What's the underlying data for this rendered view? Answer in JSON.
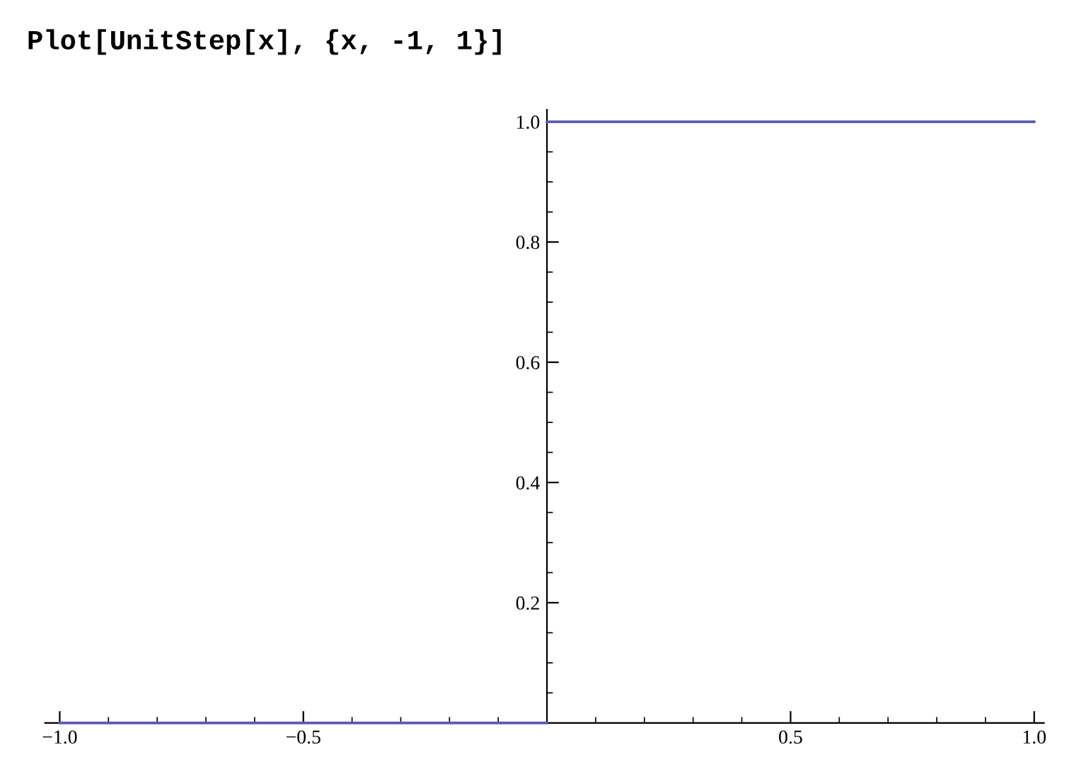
{
  "chart_data": {
    "type": "line",
    "title": "Plot[UnitStep[x], {x, -1, 1}]",
    "series": [
      {
        "color": "#5b5bb0",
        "x": [
          -1,
          0
        ],
        "values": [
          0,
          0
        ]
      },
      {
        "color": "#5b5bb0",
        "x": [
          0,
          1
        ],
        "values": [
          1,
          1
        ]
      }
    ],
    "xlim": [
      -1.03,
      1.02
    ],
    "ylim": [
      0,
      1.02
    ],
    "xticks": [
      {
        "value": -1,
        "label": "−1.0"
      },
      {
        "value": -0.5,
        "label": "−0.5"
      },
      0.5,
      {
        "value": 1,
        "label": "1.0"
      }
    ],
    "yticks": [
      0.2,
      0.4,
      0.6,
      0.8,
      {
        "value": 1,
        "label": "1.0"
      }
    ],
    "grid": false,
    "marker": "none",
    "line_style": "solid"
  }
}
